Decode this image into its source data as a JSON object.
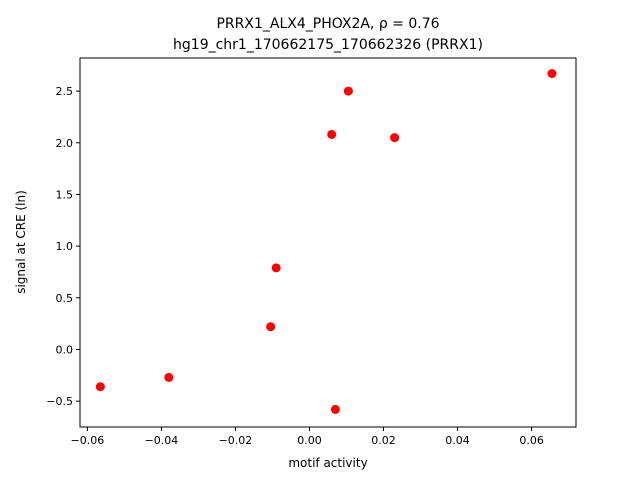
{
  "chart_data": {
    "type": "scatter",
    "title_line1": "PRRX1_ALX4_PHOX2A, ρ = 0.76",
    "title_line2": "hg19_chr1_170662175_170662326 (PRRX1)",
    "xlabel": "motif activity",
    "ylabel": "signal at CRE (ln)",
    "xlim": [
      -0.062,
      0.072
    ],
    "ylim": [
      -0.75,
      2.82
    ],
    "xticks": [
      -0.06,
      -0.04,
      -0.02,
      0.0,
      0.02,
      0.04,
      0.06
    ],
    "xtick_labels": [
      "−0.06",
      "−0.04",
      "−0.02",
      "0.00",
      "0.02",
      "0.04",
      "0.06"
    ],
    "yticks": [
      -0.5,
      0.0,
      0.5,
      1.0,
      1.5,
      2.0,
      2.5
    ],
    "ytick_labels": [
      "−0.5",
      "0.0",
      "0.5",
      "1.0",
      "1.5",
      "2.0",
      "2.5"
    ],
    "grid": false,
    "marker_color": "#ff0000",
    "points": [
      {
        "x": -0.0565,
        "y": -0.36
      },
      {
        "x": -0.038,
        "y": -0.27
      },
      {
        "x": -0.0105,
        "y": 0.22
      },
      {
        "x": -0.009,
        "y": 0.79
      },
      {
        "x": 0.006,
        "y": 2.08
      },
      {
        "x": 0.007,
        "y": -0.58
      },
      {
        "x": 0.0105,
        "y": 2.5
      },
      {
        "x": 0.023,
        "y": 2.05
      },
      {
        "x": 0.0655,
        "y": 2.67
      }
    ]
  }
}
